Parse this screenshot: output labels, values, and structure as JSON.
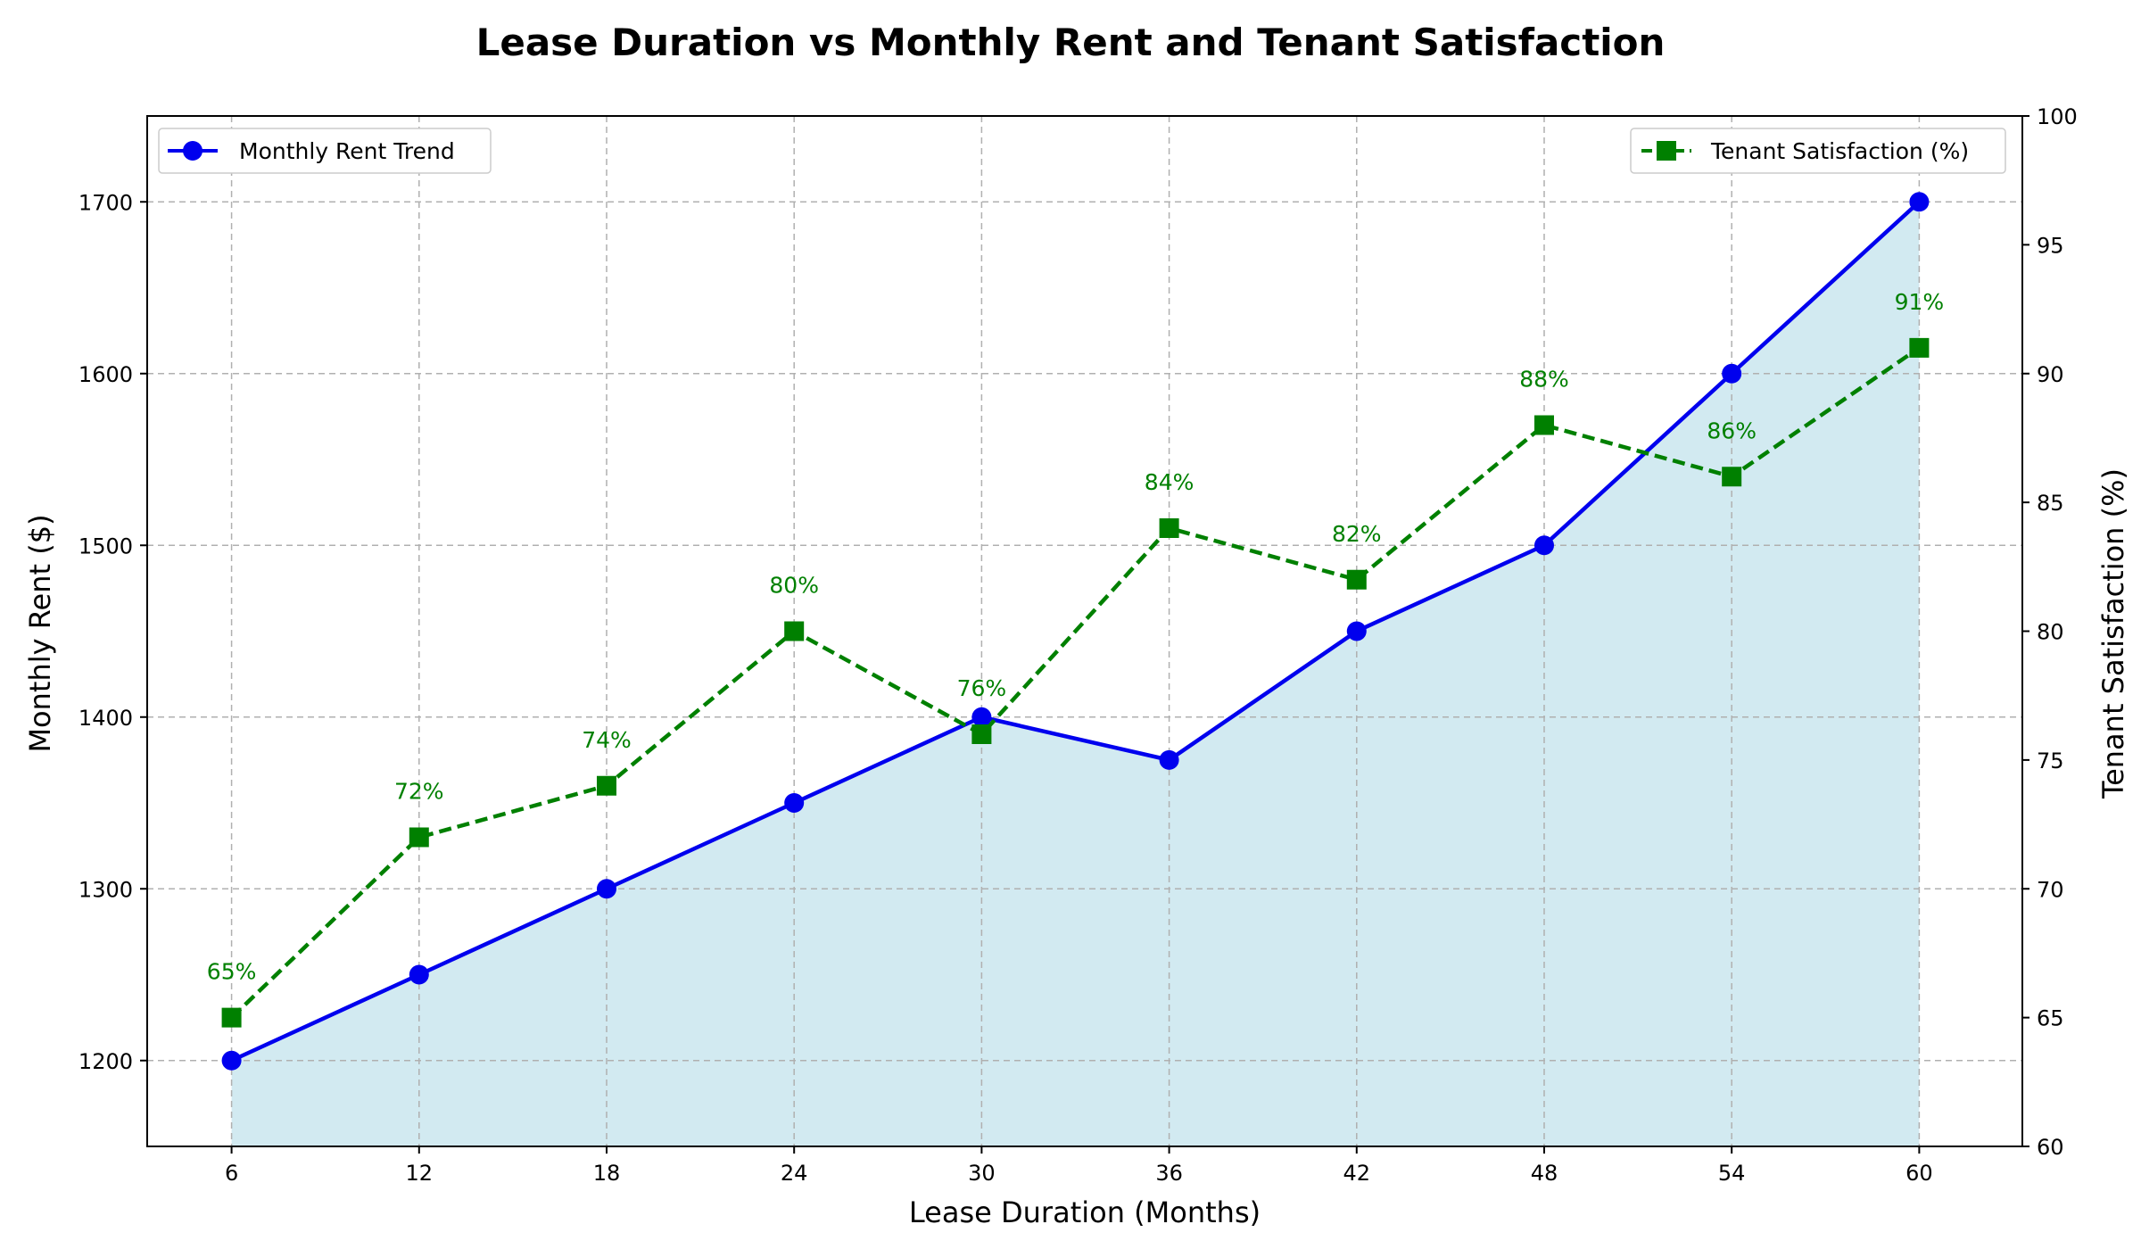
{
  "chart_data": {
    "type": "line",
    "title": "Lease Duration vs Monthly Rent and Tenant Satisfaction",
    "xlabel": "Lease Duration (Months)",
    "ylabel": "Monthly Rent ($)",
    "y2label": "Tenant Satisfaction (%)",
    "x": [
      6,
      12,
      18,
      24,
      30,
      36,
      42,
      48,
      54,
      60
    ],
    "x_tick_labels": [
      "6",
      "12",
      "18",
      "24",
      "30",
      "36",
      "42",
      "48",
      "54",
      "60"
    ],
    "xlim": [
      3.3,
      63.3
    ],
    "ylim": [
      1150,
      1750
    ],
    "y_ticks": [
      1200,
      1300,
      1400,
      1500,
      1600,
      1700
    ],
    "y_tick_labels": [
      "1200",
      "1300",
      "1400",
      "1500",
      "1600",
      "1700"
    ],
    "y2lim": [
      60,
      100
    ],
    "y2_ticks": [
      60,
      65,
      70,
      75,
      80,
      85,
      90,
      95,
      100
    ],
    "y2_tick_labels": [
      "60",
      "65",
      "70",
      "75",
      "80",
      "85",
      "90",
      "95",
      "100"
    ],
    "grid": true,
    "series": [
      {
        "name": "Monthly Rent Trend",
        "axis": "left",
        "values": [
          1200,
          1250,
          1300,
          1350,
          1400,
          1375,
          1450,
          1500,
          1600,
          1700
        ],
        "color": "#0000ee",
        "fill_color": "#add8e6",
        "marker": "circle",
        "line_style": "solid",
        "legend_position": "upper-left"
      },
      {
        "name": "Tenant Satisfaction (%)",
        "axis": "right",
        "values": [
          65,
          72,
          74,
          80,
          76,
          84,
          82,
          88,
          86,
          91
        ],
        "data_labels": [
          "65%",
          "72%",
          "74%",
          "80%",
          "76%",
          "84%",
          "82%",
          "88%",
          "86%",
          "91%"
        ],
        "color": "#008000",
        "marker": "square",
        "line_style": "dashed",
        "legend_position": "upper-right"
      }
    ]
  }
}
